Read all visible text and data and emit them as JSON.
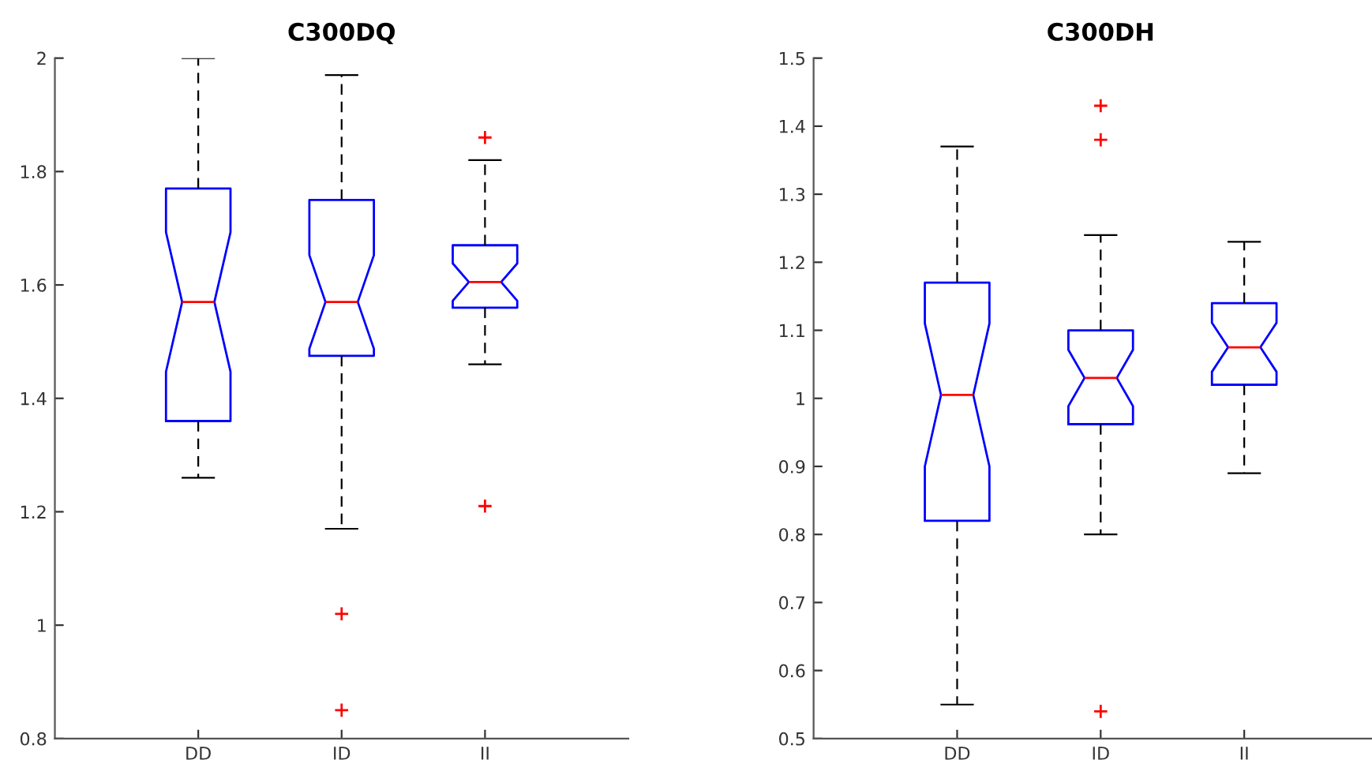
{
  "chart_data": [
    {
      "type": "box",
      "title": "C300DQ",
      "categories": [
        "DD",
        "ID",
        "II"
      ],
      "ylim": [
        0.8,
        2
      ],
      "yticks": [
        0.8,
        1,
        1.2,
        1.4,
        1.6,
        1.8,
        2
      ],
      "grid": false,
      "legend": false,
      "series": [
        {
          "color": "#0000ff",
          "boxes": [
            {
              "low": 1.26,
              "q1": 1.36,
              "median": 1.57,
              "q3": 1.77,
              "high": 2.0
            },
            {
              "low": 1.17,
              "q1": 1.475,
              "median": 1.57,
              "q3": 1.75,
              "high": 1.97,
              "outliers": [
                1.02,
                0.85
              ]
            },
            {
              "low": 1.46,
              "q1": 1.56,
              "median": 1.605,
              "q3": 1.67,
              "high": 1.82,
              "outliers": [
                1.86,
                1.21
              ]
            }
          ]
        }
      ]
    },
    {
      "type": "box",
      "title": "C300DH",
      "categories": [
        "DD",
        "ID",
        "II"
      ],
      "ylim": [
        0.5,
        1.5
      ],
      "yticks": [
        0.5,
        0.6,
        0.7,
        0.8,
        0.9,
        1,
        1.1,
        1.2,
        1.3,
        1.4,
        1.5
      ],
      "grid": false,
      "legend": false,
      "series": [
        {
          "color": "#0000ff",
          "boxes": [
            {
              "low": 0.55,
              "q1": 0.82,
              "median": 1.005,
              "q3": 1.17,
              "high": 1.37
            },
            {
              "low": 0.8,
              "q1": 0.962,
              "median": 1.03,
              "q3": 1.1,
              "high": 1.24,
              "outliers": [
                1.43,
                1.38,
                0.54
              ]
            },
            {
              "low": 0.89,
              "q1": 1.02,
              "median": 1.075,
              "q3": 1.14,
              "high": 1.23
            }
          ]
        }
      ]
    }
  ]
}
